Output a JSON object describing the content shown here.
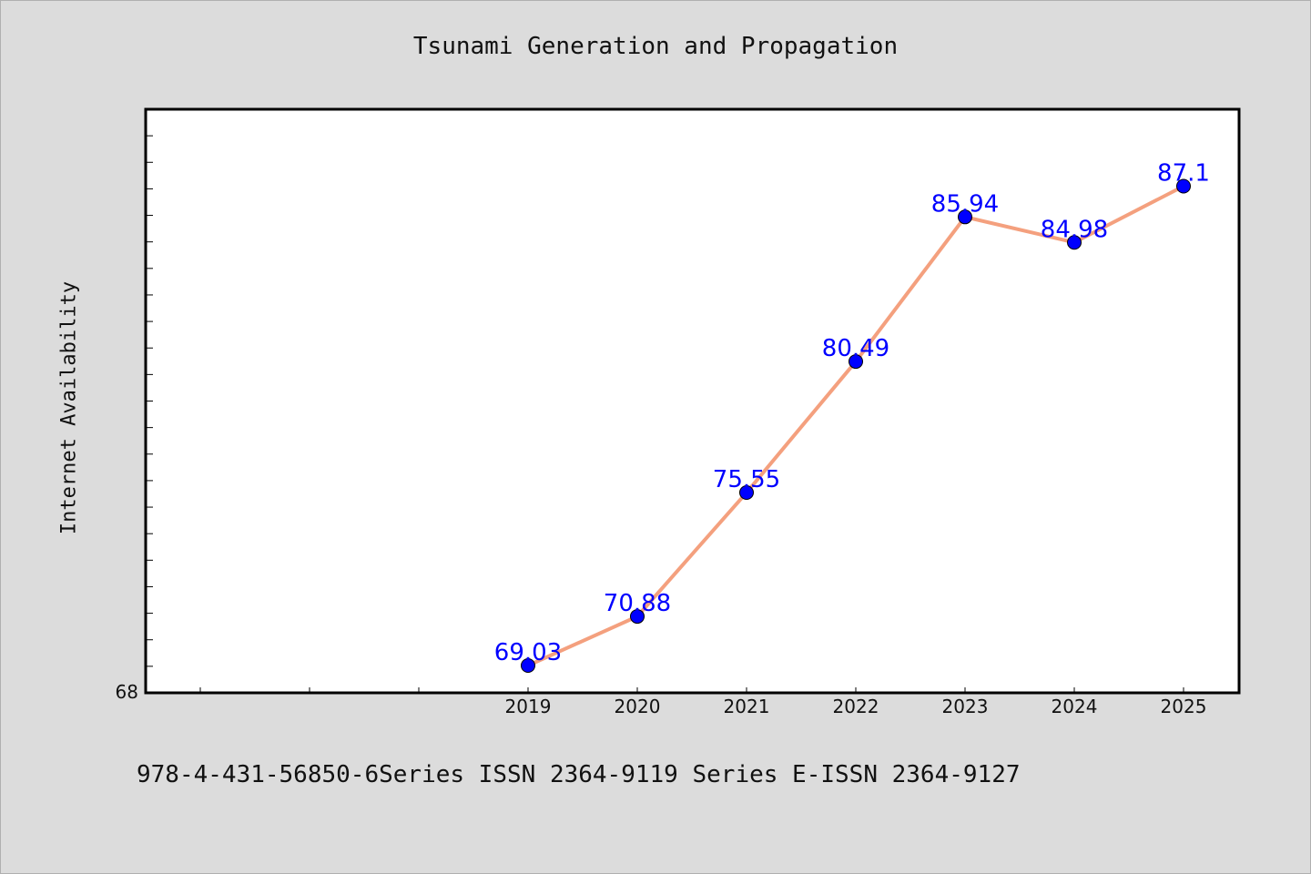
{
  "title": "Tsunami Generation and Propagation",
  "footer": "978-4-431-56850-6Series ISSN 2364-9119 Series E-ISSN 2364-9127",
  "chart_data": {
    "type": "line",
    "title": "Tsunami Generation and Propagation",
    "xlabel": "",
    "ylabel": "Internet Availability",
    "categories": [
      "2019",
      "2020",
      "2021",
      "2022",
      "2023",
      "2024",
      "2025"
    ],
    "series": [
      {
        "values": [
          69.03,
          70.88,
          75.55,
          80.49,
          85.94,
          84.98,
          87.1
        ]
      }
    ],
    "data_labels": [
      "69.03",
      "70.88",
      "75.55",
      "80.49",
      "85.94",
      "84.98",
      "87.1"
    ],
    "y_tick_labels": [
      "68"
    ],
    "ylim": [
      68,
      90
    ],
    "grid": false,
    "colors": {
      "line": "#f4a07e",
      "marker": "#0000ff",
      "label": "#0000ff"
    }
  }
}
